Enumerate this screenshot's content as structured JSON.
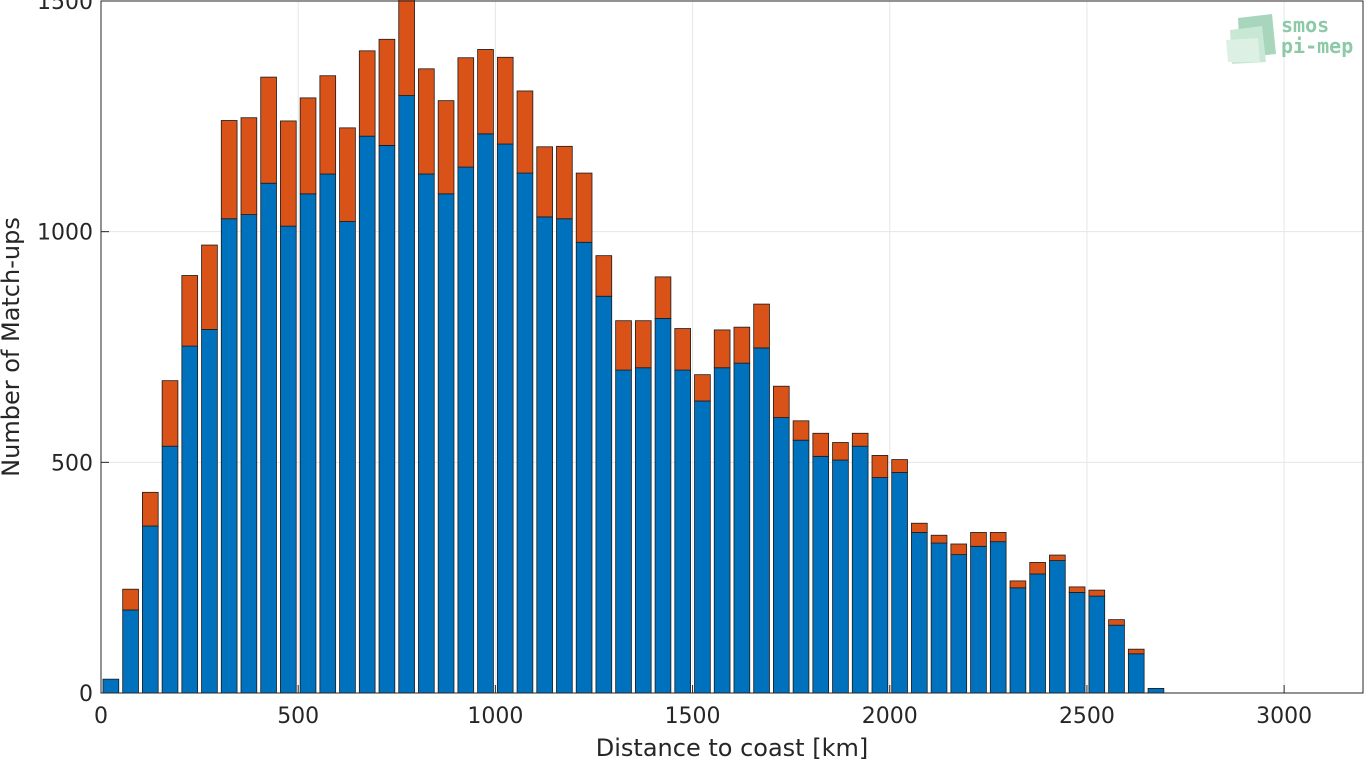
{
  "chart_data": {
    "type": "bar",
    "stacked": true,
    "xlabel": "Distance to coast [km]",
    "ylabel": "Number of Match-ups",
    "xlim": [
      0,
      3200
    ],
    "ylim": [
      0,
      1500
    ],
    "xticks": [
      0,
      500,
      1000,
      1500,
      2000,
      2500,
      3000
    ],
    "yticks": [
      0,
      500,
      1000,
      1500
    ],
    "grid": true,
    "bin_width": 50,
    "x": [
      25,
      75,
      125,
      175,
      225,
      275,
      325,
      375,
      425,
      475,
      525,
      575,
      625,
      675,
      725,
      775,
      825,
      875,
      925,
      975,
      1025,
      1075,
      1125,
      1175,
      1225,
      1275,
      1325,
      1375,
      1425,
      1475,
      1525,
      1575,
      1625,
      1675,
      1725,
      1775,
      1825,
      1875,
      1925,
      1975,
      2025,
      2075,
      2125,
      2175,
      2225,
      2275,
      2325,
      2375,
      2425,
      2475,
      2525,
      2575,
      2625,
      2675
    ],
    "series": [
      {
        "color": "#0072bd",
        "values": [
          30,
          180,
          362,
          535,
          752,
          788,
          1028,
          1037,
          1105,
          1012,
          1082,
          1125,
          1022,
          1207,
          1187,
          1295,
          1125,
          1082,
          1140,
          1212,
          1190,
          1127,
          1032,
          1028,
          977,
          860,
          700,
          705,
          812,
          700,
          633,
          705,
          715,
          748,
          597,
          548,
          513,
          505,
          535,
          467,
          478,
          348,
          325,
          300,
          318,
          328,
          228,
          258,
          287,
          218,
          210,
          147,
          85,
          10
        ]
      },
      {
        "color": "#d95319",
        "values": [
          0,
          45,
          73,
          142,
          153,
          183,
          213,
          210,
          230,
          228,
          208,
          213,
          203,
          185,
          230,
          212,
          228,
          202,
          237,
          183,
          188,
          178,
          152,
          157,
          150,
          88,
          107,
          102,
          90,
          90,
          57,
          82,
          78,
          95,
          68,
          42,
          50,
          38,
          28,
          48,
          28,
          20,
          17,
          23,
          30,
          20,
          15,
          25,
          12,
          12,
          13,
          12,
          10,
          0
        ]
      }
    ]
  },
  "logo": {
    "line1": "smos",
    "line2": "pi-mep"
  }
}
